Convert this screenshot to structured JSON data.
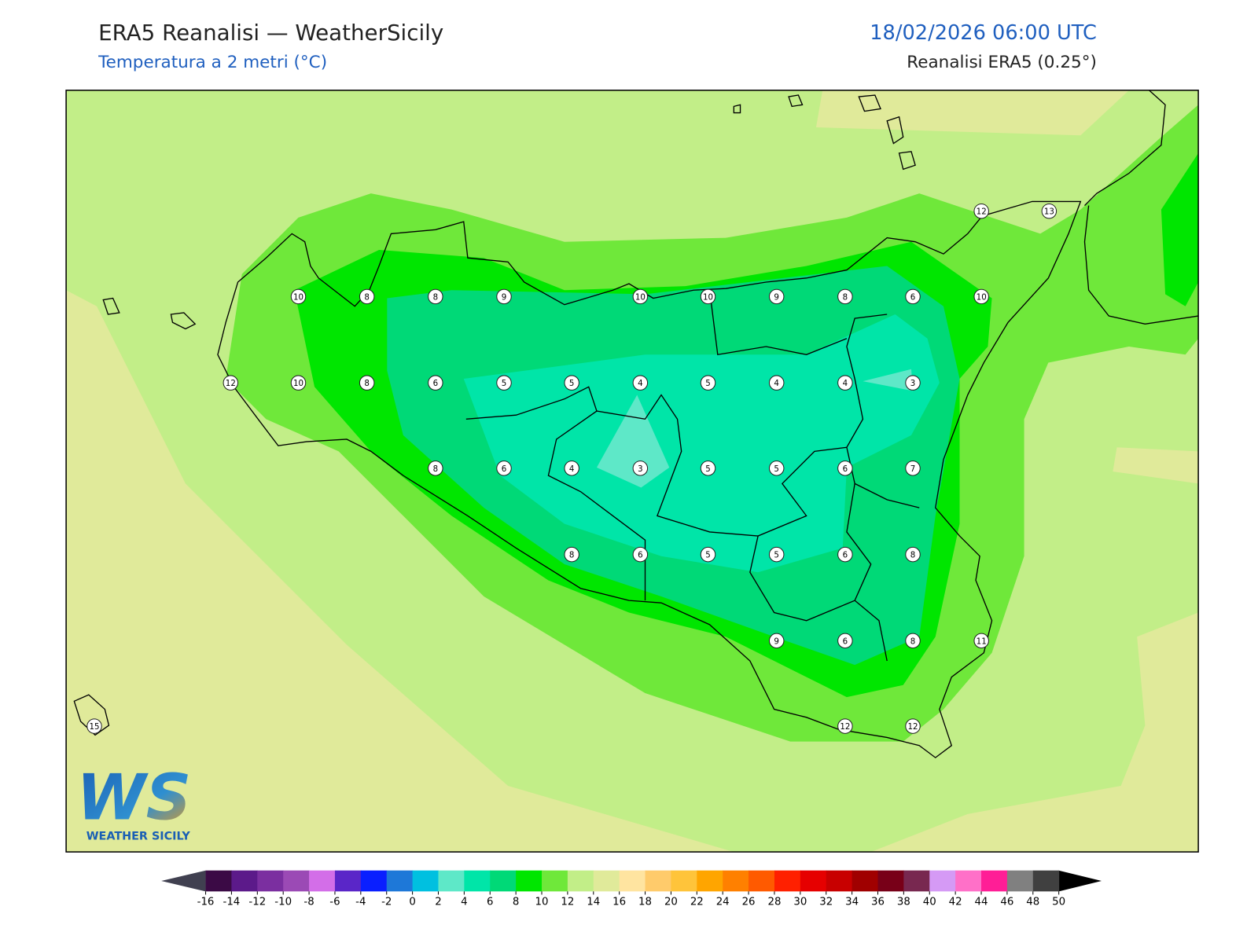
{
  "header": {
    "title": "ERA5 Reanalisi — WeatherSicily",
    "subtitle": "Temperatura a 2 metri (°C)",
    "datetime": "18/02/2026 06:00 UTC",
    "source": "Reanalisi ERA5 (0.25°)"
  },
  "stations": [
    10,
    8,
    8,
    9,
    10,
    10,
    9,
    8,
    6,
    10,
    12,
    10,
    8,
    6,
    5,
    5,
    4,
    5,
    4,
    4,
    3,
    8,
    6,
    4,
    3,
    5,
    5,
    6,
    7,
    8,
    6,
    5,
    5,
    6,
    8,
    9,
    6,
    8,
    11,
    12,
    12,
    12,
    13,
    15
  ],
  "logo": {
    "mark": "WS",
    "name": "WEATHER SICILY"
  },
  "colorbar": {
    "ticks": [
      -16,
      -14,
      -12,
      -10,
      -8,
      -6,
      -4,
      -2,
      0,
      2,
      4,
      6,
      8,
      10,
      12,
      14,
      16,
      18,
      20,
      22,
      24,
      26,
      28,
      30,
      32,
      34,
      36,
      38,
      40,
      42,
      44,
      46,
      48,
      50
    ],
    "colors": [
      "#3b0a45",
      "#5c1a8a",
      "#7b2fa0",
      "#9b4ab5",
      "#d36ee8",
      "#5a26c8",
      "#0a1fff",
      "#1e78d8",
      "#00c0e0",
      "#5ee8c8",
      "#00e5a8",
      "#00d977",
      "#00e600",
      "#6fe83a",
      "#c2ee88",
      "#e0ea9a",
      "#ffe4a0",
      "#ffcb6b",
      "#ffc43a",
      "#ffa500",
      "#ff8000",
      "#ff5a00",
      "#ff2000",
      "#e60000",
      "#c80000",
      "#a00000",
      "#780018",
      "#782850",
      "#d59af5",
      "#ff70c8",
      "#ff1e96",
      "#808080",
      "#404040"
    ],
    "under_color": "#404050",
    "over_color": "#000000"
  }
}
